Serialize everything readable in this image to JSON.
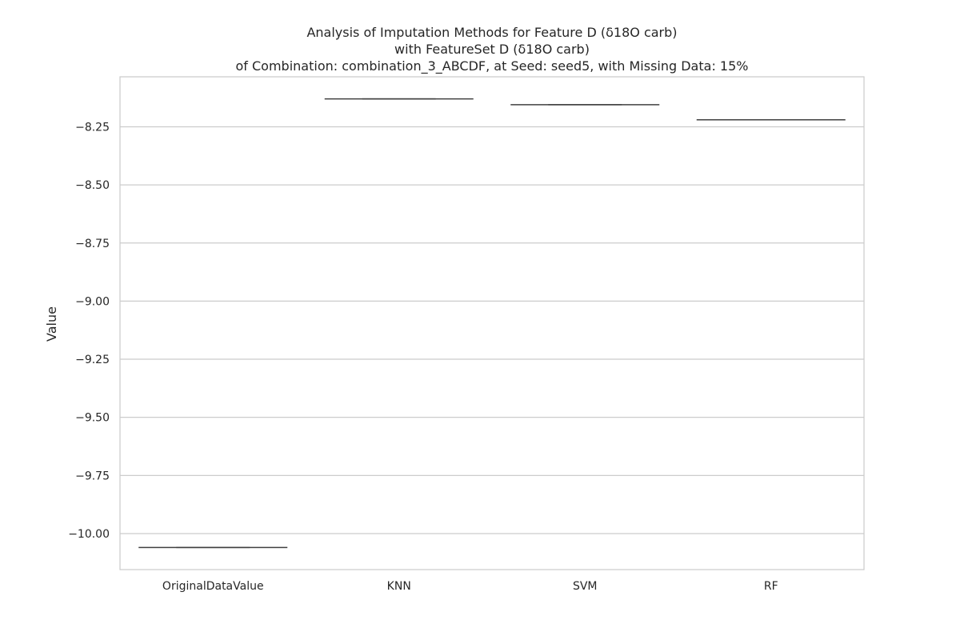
{
  "chart_data": {
    "type": "violin",
    "title": [
      "Analysis of Imputation Methods for Feature D (δ18O carb)",
      "with FeatureSet D (δ18O carb)",
      "of Combination: combination_3_ABCDF, at Seed: seed5, with Missing Data: 15%"
    ],
    "xlabel": "",
    "ylabel": "Value",
    "categories": [
      "OriginalDataValue",
      "KNN",
      "SVM",
      "RF"
    ],
    "values": [
      -10.06,
      -8.13,
      -8.155,
      -8.22
    ],
    "yticks": [
      -10.0,
      -9.75,
      -9.5,
      -9.25,
      -9.0,
      -8.75,
      -8.5,
      -8.25
    ],
    "ytick_labels": [
      "−10.00",
      "−9.75",
      "−9.50",
      "−9.25",
      "−9.00",
      "−8.75",
      "−8.50",
      "−8.25"
    ],
    "ylim": [
      -10.155,
      -8.035
    ],
    "grid": true,
    "colors": {
      "grid": "#cccccc",
      "frame": "#cccccc",
      "line": "#404040",
      "text": "#262626"
    }
  }
}
